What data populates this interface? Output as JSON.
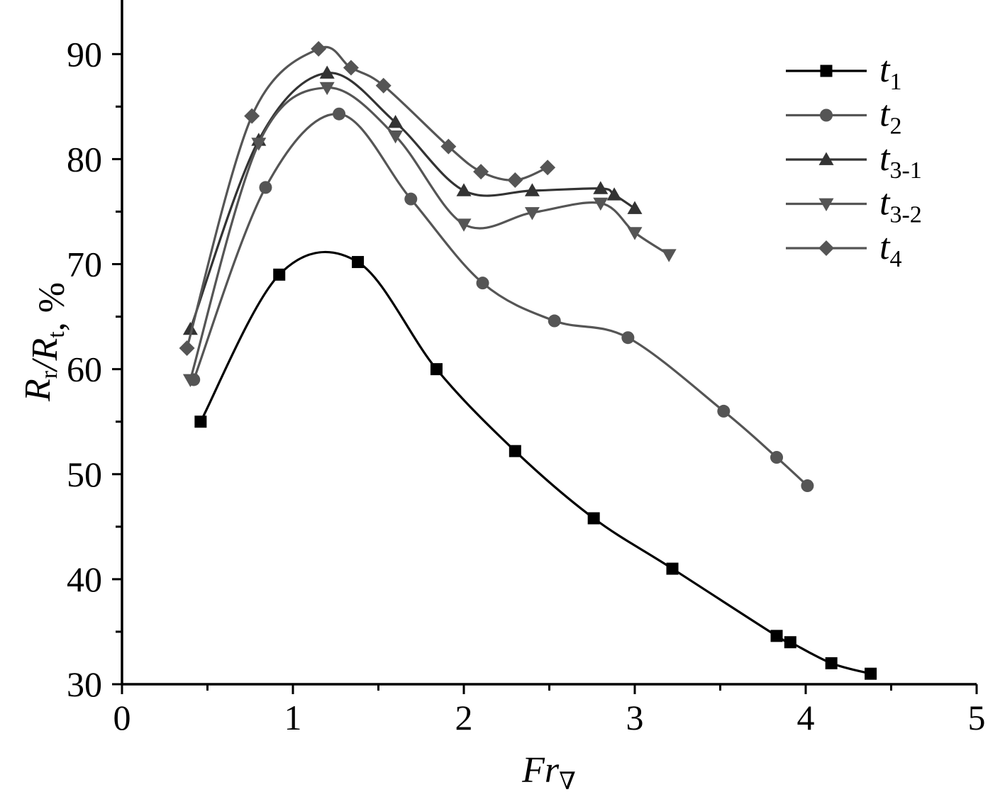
{
  "chart_data": {
    "type": "line",
    "title": "",
    "xlabel": "Fr",
    "xlabel_sub": "∇",
    "ylabel": "Rr/Rt, %",
    "ylabel_parts": [
      {
        "t": "R",
        "sub": "r"
      },
      {
        "t": "/R",
        "sub": "t"
      },
      {
        "t": ", %",
        "sub": ""
      }
    ],
    "xlim": [
      0,
      5
    ],
    "ylim": [
      30,
      95
    ],
    "x_ticks": [
      0,
      1,
      2,
      3,
      4,
      5
    ],
    "x_tick_labels": [
      "0",
      "1",
      "2",
      "3",
      "4",
      "5"
    ],
    "y_ticks": [
      30,
      40,
      50,
      60,
      70,
      80,
      90
    ],
    "y_tick_labels": [
      "30",
      "40",
      "50",
      "60",
      "70",
      "80",
      "90"
    ],
    "grid": false,
    "legend_position": "top-right",
    "series": [
      {
        "name": "t",
        "name_sub": "1",
        "marker": "square",
        "color": "#000000",
        "x": [
          0.46,
          0.92,
          1.38,
          1.84,
          2.3,
          2.76,
          3.22,
          3.83,
          3.91,
          4.15,
          4.38
        ],
        "y": [
          55.0,
          69.0,
          70.2,
          60.0,
          52.2,
          45.8,
          41.0,
          34.6,
          34.0,
          32.0,
          31.0
        ]
      },
      {
        "name": "t",
        "name_sub": "2",
        "marker": "circle",
        "color": "#555555",
        "x": [
          0.42,
          0.84,
          1.27,
          1.69,
          2.11,
          2.53,
          2.96,
          3.52,
          3.83,
          4.01
        ],
        "y": [
          59.0,
          77.3,
          84.3,
          76.2,
          68.2,
          64.6,
          63.0,
          56.0,
          51.6,
          48.9
        ]
      },
      {
        "name": "t",
        "name_sub": "3-1",
        "marker": "triangle-up",
        "color": "#333333",
        "x": [
          0.4,
          0.8,
          1.2,
          1.6,
          2.0,
          2.4,
          2.8,
          2.88,
          3.0
        ],
        "y": [
          63.8,
          81.8,
          88.2,
          83.5,
          77.0,
          77.0,
          77.2,
          76.6,
          75.3
        ]
      },
      {
        "name": "t",
        "name_sub": "3-2",
        "marker": "triangle-down",
        "color": "#555555",
        "x": [
          0.4,
          0.8,
          1.2,
          1.6,
          2.0,
          2.4,
          2.8,
          3.0,
          3.2
        ],
        "y": [
          59.0,
          81.5,
          86.8,
          82.2,
          73.8,
          74.9,
          75.8,
          73.0,
          70.9
        ]
      },
      {
        "name": "t",
        "name_sub": "4",
        "marker": "diamond",
        "color": "#555555",
        "x": [
          0.38,
          0.76,
          1.15,
          1.34,
          1.53,
          1.91,
          2.1,
          2.3,
          2.49
        ],
        "y": [
          62.0,
          84.1,
          90.5,
          88.7,
          87.0,
          81.2,
          78.8,
          78.0,
          79.2
        ]
      }
    ]
  }
}
